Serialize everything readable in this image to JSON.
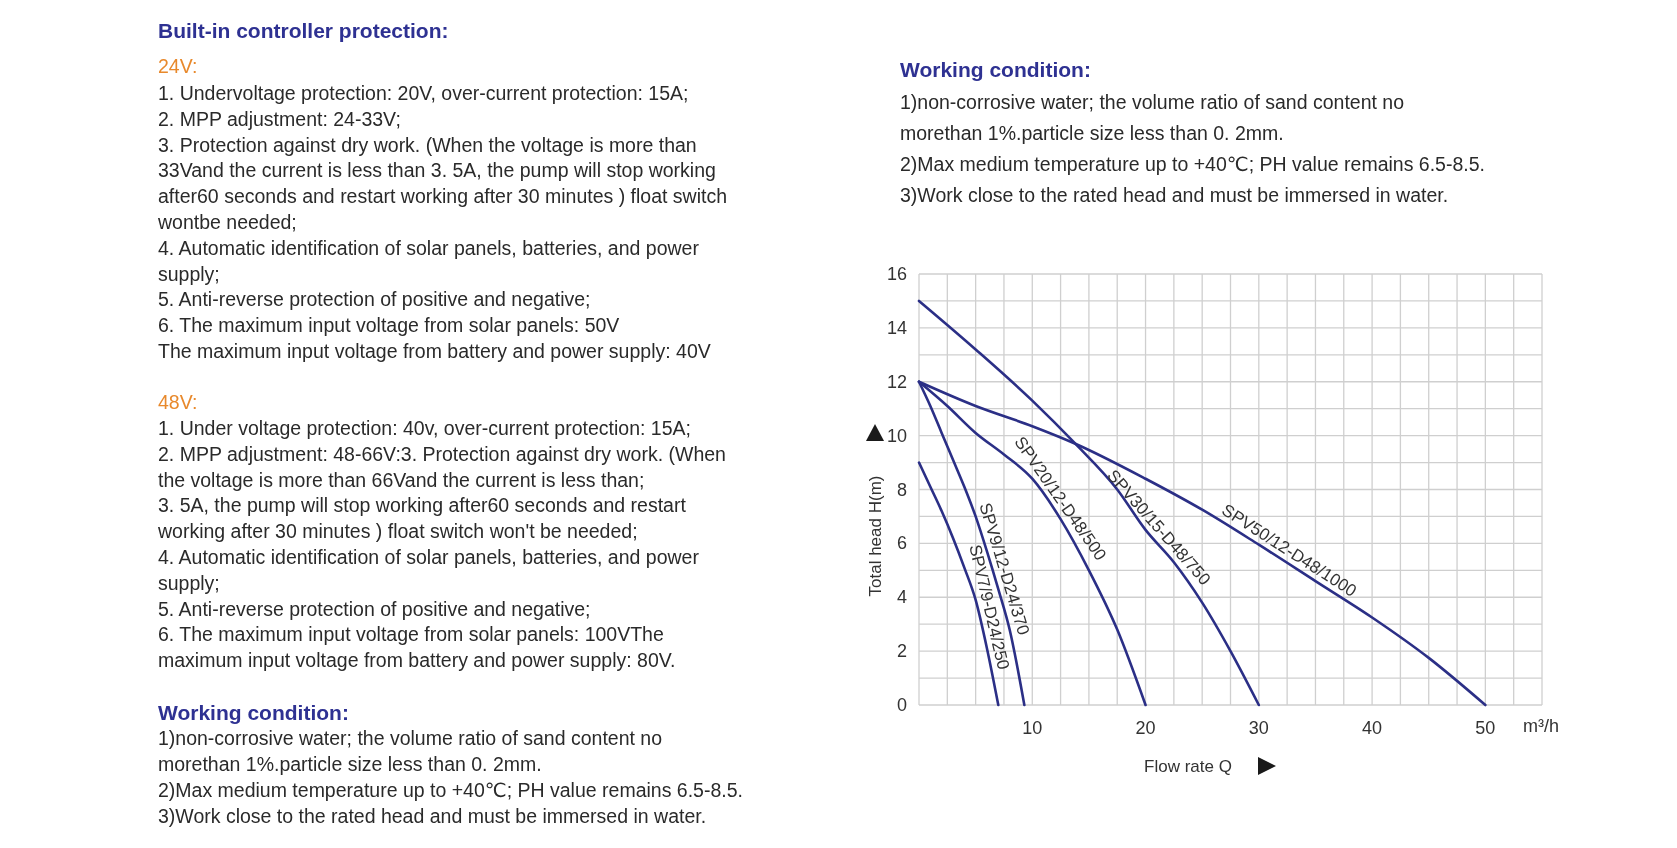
{
  "chart_data": [
    {
      "type": "other",
      "title": "Built-in controller protection:",
      "subtitle": "24V:",
      "annotations": [
        "1. Undervoltage protection: 20V, over-current protection: 15A;",
        "2. MPP adjustment: 24-33V;",
        "3. Protection against dry work. (When the voltage is more than",
        "33Vand the current is less than 3. 5A, the pump will stop working",
        "after60 seconds and restart working after 30 minutes ) float switch",
        "wontbe needed;",
        "4. Automatic identification of solar panels, batteries, and power",
        "supply;",
        "5. Anti-reverse protection of positive and negative;",
        "6. The maximum input voltage from solar panels: 50V",
        "The maximum input voltage from battery and power supply: 40V"
      ]
    },
    {
      "type": "other",
      "subtitle": "48V:",
      "annotations": [
        "1. Under voltage protection: 40v, over-current protection: 15A;",
        "2. MPP adjustment: 48-66V:3. Protection against dry work. (When",
        "the voltage is more than 66Vand the current is less than;",
        "3. 5A, the pump will stop working after60 seconds and restart",
        "working after 30 minutes ) float switch won't be needed;",
        "4. Automatic identification of solar panels, batteries, and power",
        "supply;",
        "5. Anti-reverse protection of positive and negative;",
        "6. The maximum input voltage from solar panels: 100VThe",
        "maximum input voltage from battery and power supply: 80V."
      ]
    },
    {
      "type": "other",
      "title": "Working condition:",
      "annotations": [
        "1)non-corrosive water; the volume ratio of sand content no",
        "morethan 1%.particle size less than 0. 2mm.",
        "2)Max medium temperature up to +40℃; PH value remains 6.5-8.5.",
        "3)Work close to the rated head and must be immersed in water."
      ]
    },
    {
      "type": "other",
      "title": "Working condition:",
      "annotations": [
        "1)non-corrosive water; the volume ratio of sand content no",
        "morethan 1%.particle size less than 0. 2mm.",
        "2)Max medium temperature up to +40℃; PH value remains 6.5-8.5.",
        "3)Work close to the rated head and must be immersed in water."
      ]
    },
    {
      "type": "line",
      "xlabel": "Flow rate Q",
      "ylabel": "Total head H(m)",
      "annotations": [
        "m³/h"
      ],
      "xlim": [
        0,
        55
      ],
      "ylim": [
        0,
        16
      ],
      "grid": true,
      "xticks": [
        {
          "value": 0,
          "label": null
        },
        {
          "value": 2.5,
          "label": null
        },
        {
          "value": 5,
          "label": null
        },
        {
          "value": 7.5,
          "label": null
        },
        10,
        {
          "value": 12.5,
          "label": null
        },
        {
          "value": 15,
          "label": null
        },
        {
          "value": 17.5,
          "label": null
        },
        20,
        {
          "value": 22.5,
          "label": null
        },
        {
          "value": 25,
          "label": null
        },
        {
          "value": 27.5,
          "label": null
        },
        30,
        {
          "value": 32.5,
          "label": null
        },
        {
          "value": 35,
          "label": null
        },
        {
          "value": 37.5,
          "label": null
        },
        40,
        {
          "value": 42.5,
          "label": null
        },
        {
          "value": 45,
          "label": null
        },
        {
          "value": 47.5,
          "label": null
        },
        50,
        {
          "value": 52.5,
          "label": null
        },
        {
          "value": 55,
          "label": null
        }
      ],
      "yticks": [
        0,
        {
          "value": 1,
          "label": null
        },
        2,
        {
          "value": 3,
          "label": null
        },
        4,
        {
          "value": 5,
          "label": null
        },
        6,
        {
          "value": 7,
          "label": null
        },
        8,
        {
          "value": 9,
          "label": null
        },
        10,
        {
          "value": 11,
          "label": null
        },
        12,
        {
          "value": 13,
          "label": null
        },
        14,
        {
          "value": 15,
          "label": null
        },
        16
      ],
      "series": [
        {
          "name": "SPV7/9-D24/250",
          "color": "#2b2f86",
          "x": [
            0,
            1,
            2,
            3,
            4,
            5,
            6,
            7
          ],
          "values": [
            9,
            8.1,
            7.2,
            6.2,
            5.1,
            3.9,
            2.1,
            0
          ]
        },
        {
          "name": "SPV9/12-D24/370",
          "color": "#2b2f86",
          "x": [
            0,
            1,
            2,
            3,
            4,
            5,
            6,
            7,
            8,
            9.3
          ],
          "values": [
            12,
            11.1,
            10.1,
            9.1,
            8.1,
            7,
            5.7,
            4.3,
            2.8,
            0
          ]
        },
        {
          "name": "SPV20/12-D48/500",
          "color": "#2b2f86",
          "x": [
            0,
            2.5,
            5,
            7.5,
            10,
            12.5,
            15,
            17.5,
            20
          ],
          "values": [
            12,
            11.1,
            10.1,
            9.3,
            8.4,
            6.9,
            5,
            2.8,
            0
          ]
        },
        {
          "name": "SPV30/15-D48/750",
          "color": "#2b2f86",
          "x": [
            0,
            5,
            10,
            13.8,
            17.5,
            20,
            22.5,
            25,
            27.5,
            30
          ],
          "values": [
            15,
            13.2,
            11.3,
            9.7,
            8,
            6.5,
            5.3,
            3.8,
            2,
            0
          ]
        },
        {
          "name": "SPV50/12-D48/1000",
          "color": "#2b2f86",
          "x": [
            0,
            5,
            10,
            13.8,
            20,
            25,
            30,
            35,
            40,
            45,
            50
          ],
          "values": [
            12,
            11.1,
            10.35,
            9.7,
            8.4,
            7.25,
            5.95,
            4.6,
            3.25,
            1.75,
            0
          ]
        }
      ]
    }
  ]
}
